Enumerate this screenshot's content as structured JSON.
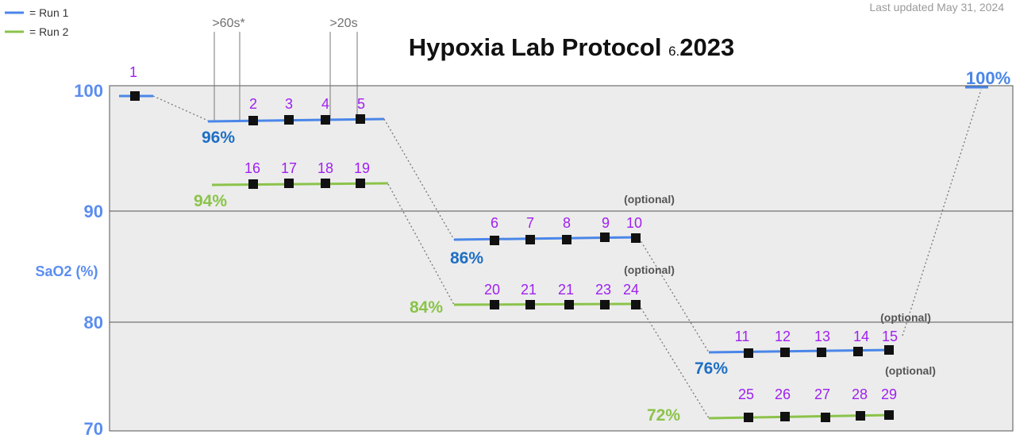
{
  "header": {
    "title_main": "Hypoxia Lab Protocol ",
    "title_small": "6.",
    "title_year": "2023",
    "updated": "Last updated May 31, 2024"
  },
  "legend": [
    {
      "label": "= Run 1",
      "color": "#4a86e8"
    },
    {
      "label": "= Run 2",
      "color": "#8bc34a"
    }
  ],
  "colors": {
    "run1_line": "#4a86e8",
    "run2_line": "#8bc34a",
    "run1_label": "#1f6fc4",
    "run2_label": "#8bc34a",
    "point_label": "#a020f0",
    "axis": "#5b8def"
  },
  "chart_data": {
    "type": "line",
    "ylabel": "SaO2 (%)",
    "yticks": [
      "70",
      "80",
      "90",
      "100"
    ],
    "ylim": [
      70,
      100
    ],
    "timing_markers": [
      ">60s*",
      ">20s"
    ],
    "baseline_point": {
      "label": "1",
      "value": 99.5
    },
    "end_label": "100%",
    "end_value": 100,
    "plateaus": [
      {
        "series": "Run 1",
        "level": "96%",
        "labels": [
          "2",
          "3",
          "4",
          "5"
        ],
        "values": [
          97.4,
          97.5,
          97.5,
          97.5
        ]
      },
      {
        "series": "Run 2",
        "level": "94%",
        "labels": [
          "16",
          "17",
          "18",
          "19"
        ],
        "values": [
          92.2,
          92.3,
          92.3,
          92.3
        ]
      },
      {
        "series": "Run 1",
        "level": "86%",
        "labels": [
          "6",
          "7",
          "8",
          "9",
          "10"
        ],
        "values": [
          87.3,
          87.4,
          87.4,
          87.6,
          87.5
        ]
      },
      {
        "series": "Run 2",
        "level": "84%",
        "labels": [
          "20",
          "21",
          "21",
          "23",
          "24"
        ],
        "values": [
          81.5,
          81.5,
          81.5,
          81.5,
          81.5
        ]
      },
      {
        "series": "Run 1",
        "level": "76%",
        "labels": [
          "11",
          "12",
          "13",
          "14",
          "15"
        ],
        "values": [
          77.2,
          77.2,
          77.2,
          77.3,
          77.4
        ]
      },
      {
        "series": "Run 2",
        "level": "72%",
        "labels": [
          "25",
          "26",
          "27",
          "28",
          "29"
        ],
        "values": [
          71.8,
          71.8,
          71.8,
          71.9,
          71.9
        ]
      }
    ],
    "optional_notes": [
      "(optional)",
      "(optional)",
      "(optional)",
      "(optional)"
    ]
  }
}
